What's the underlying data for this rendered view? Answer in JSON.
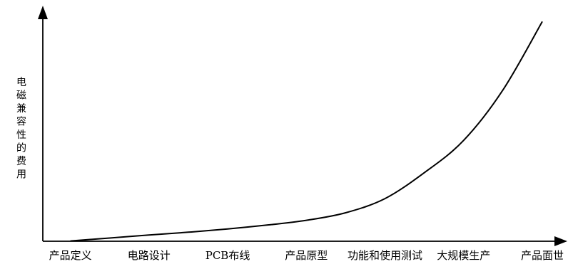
{
  "chart_data": {
    "type": "line",
    "title": "",
    "xlabel": "",
    "ylabel": "电磁兼容性的费用",
    "categories": [
      "产品定义",
      "电路设计",
      "PCB布线",
      "产品原型",
      "功能和使用测试",
      "大规模生产",
      "产品面世"
    ],
    "series": [
      {
        "x": [
          0,
          0.5,
          1,
          1.5,
          2,
          2.5,
          3,
          3.5,
          4,
          4.5,
          5,
          5.5,
          6
        ],
        "values": [
          0.2,
          2.5,
          4.8,
          7.0,
          9.5,
          12.5,
          16.2,
          22,
          33,
          53,
          78,
          117,
          170
        ]
      }
    ],
    "xlim": [
      -0.35,
      6.2
    ],
    "ylim": [
      0,
      180
    ],
    "grid": false,
    "legend": "none",
    "axis_ticks": false,
    "line_color": "#000000"
  }
}
